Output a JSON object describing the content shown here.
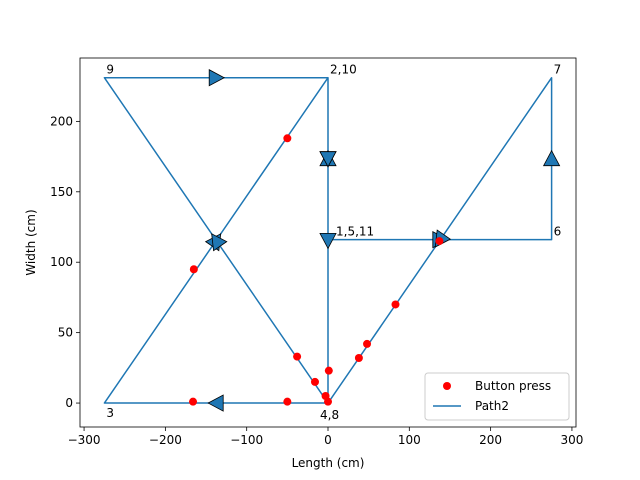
{
  "chart_data": {
    "type": "scatter",
    "title": "",
    "xlabel": "Length (cm)",
    "ylabel": "Width (cm)",
    "xlim": [
      -305,
      305
    ],
    "ylim": [
      -17,
      245
    ],
    "xticks": [
      -300,
      -200,
      -100,
      0,
      100,
      200,
      300
    ],
    "yticks": [
      0,
      50,
      100,
      150,
      200
    ],
    "grid": false,
    "legend_position": "lower-right",
    "colors": {
      "path": "#1f77b4",
      "points": "#ff0000"
    },
    "series": [
      {
        "name": "Button press",
        "kind": "scatter",
        "points": [
          [
            -166,
            1
          ],
          [
            -50,
            1
          ],
          [
            -165,
            95
          ],
          [
            -50,
            188
          ],
          [
            -38,
            33
          ],
          [
            -16,
            15
          ],
          [
            -3,
            5
          ],
          [
            0,
            1
          ],
          [
            1,
            23
          ],
          [
            38,
            32
          ],
          [
            48,
            42
          ],
          [
            83,
            70
          ],
          [
            137,
            115
          ]
        ]
      },
      {
        "name": "Path2",
        "kind": "line",
        "points": [
          [
            0,
            116
          ],
          [
            0,
            231
          ],
          [
            0,
            0
          ],
          [
            -275,
            0
          ],
          [
            0,
            231
          ],
          [
            0,
            116
          ],
          [
            275,
            116
          ],
          [
            275,
            231
          ],
          [
            0,
            0
          ],
          [
            -275,
            231
          ],
          [
            0,
            231
          ],
          [
            0,
            116
          ]
        ]
      }
    ],
    "annotations": [
      {
        "text": "9",
        "x": -275,
        "y": 231
      },
      {
        "text": "2,10",
        "x": 0,
        "y": 231
      },
      {
        "text": "7",
        "x": 275,
        "y": 231
      },
      {
        "text": "1,5,11",
        "x": 0,
        "y": 116
      },
      {
        "text": "6",
        "x": 275,
        "y": 116
      },
      {
        "text": "3",
        "x": -275,
        "y": 0
      },
      {
        "text": "4,8",
        "x": 0,
        "y": 0
      }
    ]
  }
}
